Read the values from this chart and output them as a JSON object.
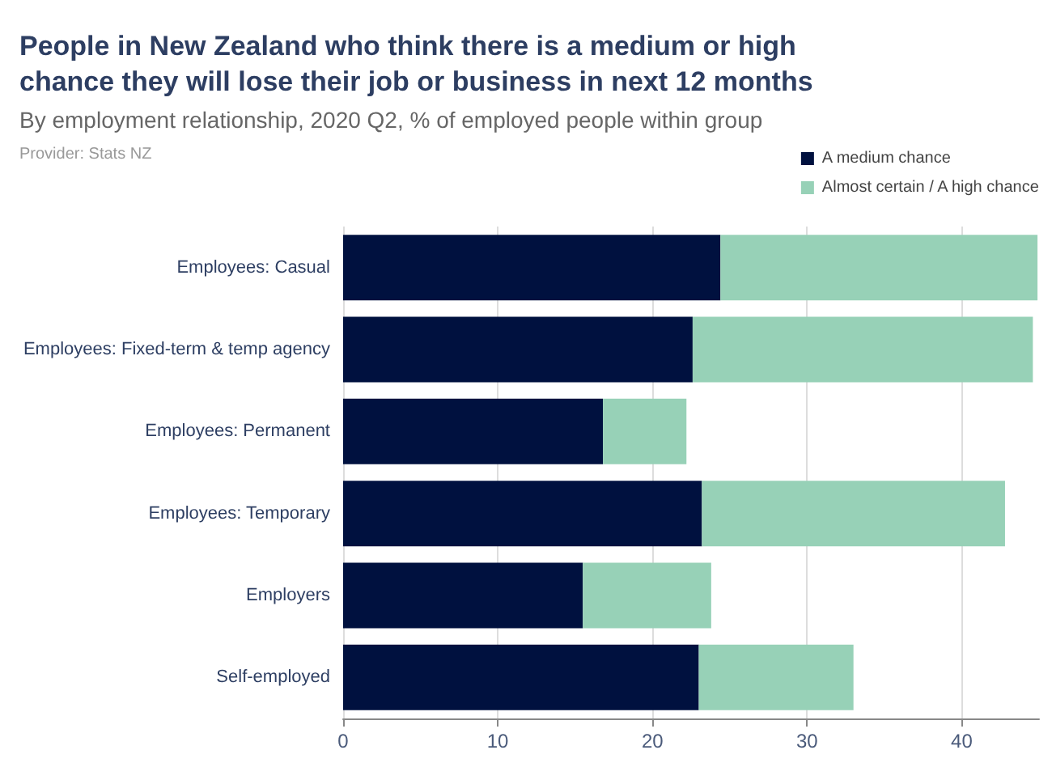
{
  "chart_data": {
    "type": "bar",
    "orientation": "horizontal",
    "stacked": true,
    "title": "People in New Zealand who think there is a medium or high chance they will lose their job or business in next 12 months",
    "subtitle": "By employment relationship, 2020 Q2, % of employed people within group",
    "annotations": [
      "Provider: Stats NZ"
    ],
    "categories": [
      "Employees: Casual",
      "Employees: Fixed-term & temp agency",
      "Employees: Permanent",
      "Employees: Temporary",
      "Employers",
      "Self-employed"
    ],
    "series": [
      {
        "name": "A medium chance",
        "color": "#00113f",
        "values": [
          24.4,
          22.6,
          16.8,
          23.2,
          15.5,
          23.0
        ]
      },
      {
        "name": "Almost certain / A high chance",
        "color": "#97d1b7",
        "values": [
          20.5,
          22.0,
          5.4,
          19.6,
          8.3,
          10.0
        ]
      }
    ],
    "xlim": [
      0,
      45
    ],
    "xticks": [
      0,
      10,
      20,
      30,
      40
    ],
    "grid": "x",
    "legend": "top right"
  }
}
